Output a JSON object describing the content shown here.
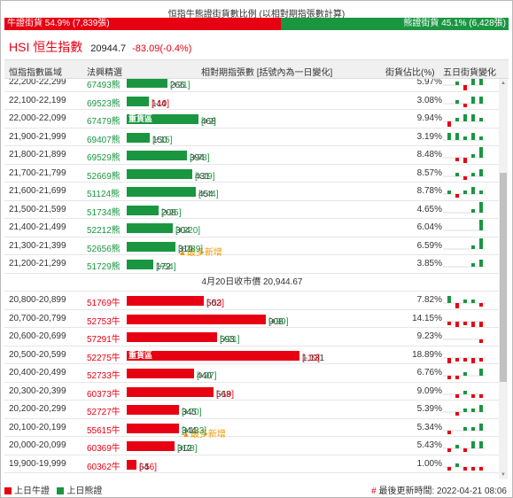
{
  "header": {
    "title": "恒指牛熊證街貨數比例 (以相對期指張數計算)",
    "bull_label": "牛證街貨 54.9% (7,839張)",
    "bear_label": "熊證街貨 45.1% (6,428張)",
    "bull_ratio": 54.9
  },
  "index": {
    "name": "HSI 恒生指數",
    "price": "20944.7",
    "change": "-83.09(-0.4%)"
  },
  "columns": {
    "range": "恒指指數區域",
    "code": "法興精選",
    "contracts": "相對期指張數 [括號內為一日變化]",
    "pct": "街貨佔比(%)",
    "trend": "五日街貨變化"
  },
  "colors": {
    "bull": "#e60012",
    "bear": "#1a9641",
    "warn": "#f39800"
  },
  "mid_label": "4月20日收市價 20,944.67",
  "bear_rows": [
    {
      "range": "22,200-22,299",
      "code": "67493熊",
      "qty": "266",
      "chg": "[+21]",
      "pct": "5.97%",
      "value": 266,
      "tag": "",
      "spark": [
        0,
        1,
        -2,
        2,
        3
      ]
    },
    {
      "range": "22,100-22,199",
      "code": "69523熊",
      "qty": "144",
      "chg": "[-10]",
      "pct": "3.08%",
      "value": 144,
      "tag": "",
      "spark": [
        0,
        1,
        -1,
        2,
        2
      ]
    },
    {
      "range": "22,000-22,099",
      "code": "67479熊",
      "qty": "468",
      "chg": "[+2]",
      "pct": "9.94%",
      "value": 468,
      "tag": "重貨區",
      "spark": [
        -2,
        1,
        2,
        2,
        1
      ]
    },
    {
      "range": "21,900-21,999",
      "code": "69407熊",
      "qty": "150",
      "chg": "[+15]",
      "pct": "3.19%",
      "value": 150,
      "tag": "",
      "spark": [
        2,
        2,
        1,
        2,
        1
      ]
    },
    {
      "range": "21,800-21,899",
      "code": "69529熊",
      "qty": "394",
      "chg": "[+78]",
      "pct": "8.48%",
      "value": 394,
      "tag": "",
      "spark": [
        0,
        -1,
        -2,
        1,
        3
      ]
    },
    {
      "range": "21,700-21,799",
      "code": "52669熊",
      "qty": "431",
      "chg": "[+19]",
      "pct": "8.57%",
      "value": 431,
      "tag": "",
      "spark": [
        0,
        1,
        -1,
        1,
        2
      ]
    },
    {
      "range": "21,600-21,699",
      "code": "51124熊",
      "qty": "454",
      "chg": "[+44]",
      "pct": "8.78%",
      "value": 454,
      "tag": "",
      "spark": [
        1,
        -1,
        1,
        2,
        1
      ]
    },
    {
      "range": "21,500-21,599",
      "code": "51734熊",
      "qty": "208",
      "chg": "[+25]",
      "pct": "4.65%",
      "value": 208,
      "tag": "",
      "spark": [
        0,
        0,
        0,
        1,
        3
      ]
    },
    {
      "range": "21,400-21,499",
      "code": "52212熊",
      "qty": "304",
      "chg": "[+220]",
      "pct": "6.04%",
      "value": 304,
      "tag": "",
      "spark": [
        0,
        0,
        0,
        0,
        3
      ]
    },
    {
      "range": "21,300-21,399",
      "code": "52656熊",
      "qty": "319",
      "chg": "[+289]",
      "pct": "6.59%",
      "value": 319,
      "tag": "▲最多新增",
      "spark": [
        0,
        0,
        0,
        1,
        3
      ]
    },
    {
      "range": "21,200-21,299",
      "code": "51729熊",
      "qty": "172",
      "chg": "[+54]",
      "pct": "3.85%",
      "value": 172,
      "tag": "",
      "spark": [
        0,
        0,
        0,
        1,
        2
      ]
    }
  ],
  "bull_rows": [
    {
      "range": "20,800-20,899",
      "code": "51769牛",
      "qty": "502",
      "chg": "[-53]",
      "pct": "7.82%",
      "value": 502,
      "tag": "",
      "spark": [
        2,
        -2,
        1,
        1,
        -1
      ]
    },
    {
      "range": "20,700-20,799",
      "code": "52753牛",
      "qty": "908",
      "chg": "[+89]",
      "pct": "14.15%",
      "value": 908,
      "tag": "",
      "spark": [
        -1,
        -2,
        -1,
        -2,
        -2
      ]
    },
    {
      "range": "20,600-20,699",
      "code": "57291牛",
      "qty": "593",
      "chg": "[+21]",
      "pct": "9.23%",
      "value": 593,
      "tag": "",
      "spark": [
        0,
        0,
        0,
        0,
        -1
      ]
    },
    {
      "range": "20,500-20,599",
      "code": "52275牛",
      "qty": "1,131",
      "chg": "[-19]",
      "pct": "18.89%",
      "value": 1131,
      "tag": "重貨區",
      "spark": [
        -2,
        -1,
        -1,
        -2,
        -1
      ]
    },
    {
      "range": "20,400-20,499",
      "code": "52733牛",
      "qty": "440",
      "chg": "[+97]",
      "pct": "6.76%",
      "value": 440,
      "tag": "",
      "spark": [
        -1,
        -1,
        1,
        0,
        2
      ]
    },
    {
      "range": "20,300-20,399",
      "code": "60373牛",
      "qty": "568",
      "chg": "[-19]",
      "pct": "9.09%",
      "value": 568,
      "tag": "",
      "spark": [
        0,
        -1,
        1,
        -1,
        -1
      ]
    },
    {
      "range": "20,200-20,299",
      "code": "52727牛",
      "qty": "345",
      "chg": "[+70]",
      "pct": "5.39%",
      "value": 345,
      "tag": "",
      "spark": [
        0,
        -1,
        1,
        1,
        2
      ]
    },
    {
      "range": "20,100-20,199",
      "code": "55615牛",
      "qty": "344",
      "chg": "[+133]",
      "pct": "5.34%",
      "value": 344,
      "tag": "▲最多新增",
      "spark": [
        -1,
        0,
        1,
        1,
        2
      ]
    },
    {
      "range": "20,000-20,099",
      "code": "60369牛",
      "qty": "312",
      "chg": "[+78]",
      "pct": "5.43%",
      "value": 312,
      "tag": "",
      "spark": [
        -1,
        1,
        -1,
        2,
        2
      ]
    },
    {
      "range": "19,900-19,999",
      "code": "60362牛",
      "qty": "64",
      "chg": "[-56]",
      "pct": "1.00%",
      "value": 64,
      "tag": "",
      "spark": [
        -1,
        1,
        -1,
        -1,
        -1
      ]
    }
  ],
  "footer": {
    "legend_bull": "上日牛證",
    "legend_bear": "上日熊證",
    "update_prefix": "#",
    "update_text": "最後更新時間: 2022-04-21 08:06"
  }
}
